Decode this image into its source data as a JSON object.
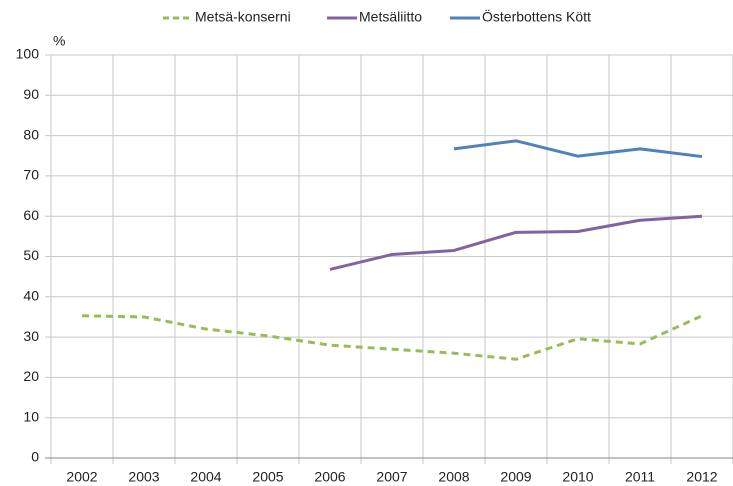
{
  "chart_data": {
    "type": "line",
    "y_label": "%",
    "categories": [
      "2002",
      "2003",
      "2004",
      "2005",
      "2006",
      "2007",
      "2008",
      "2009",
      "2010",
      "2011",
      "2012"
    ],
    "series": [
      {
        "name": "Metsä-konserni",
        "color": "#9bbb59",
        "dashed": true,
        "values": [
          35.3,
          35,
          32,
          30.3,
          28,
          27,
          26,
          24.5,
          29.6,
          28.3,
          35.3
        ]
      },
      {
        "name": "Metsäliitto",
        "color": "#8064a2",
        "dashed": false,
        "values": [
          null,
          null,
          null,
          null,
          46.8,
          50.5,
          51.5,
          56,
          56.2,
          59,
          60
        ]
      },
      {
        "name": "Österbottens Kött",
        "color": "#4f81bd",
        "dashed": false,
        "values": [
          null,
          null,
          null,
          null,
          null,
          null,
          76.7,
          78.7,
          74.9,
          76.7,
          74.8
        ]
      }
    ],
    "ylim": [
      0,
      100
    ],
    "yticks": [
      0,
      10,
      20,
      30,
      40,
      50,
      60,
      70,
      80,
      90,
      100
    ],
    "grid": true,
    "legend": "top"
  }
}
